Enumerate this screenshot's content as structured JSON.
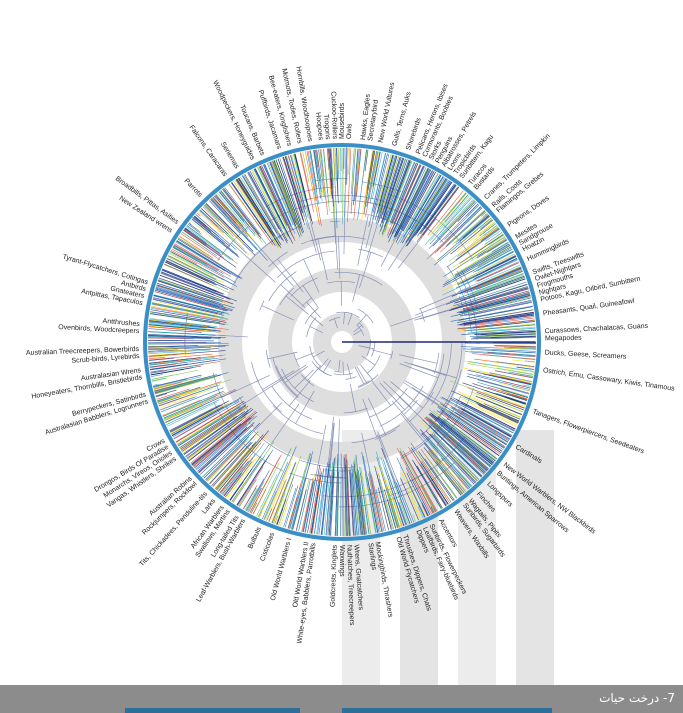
{
  "caption": "7- درخت حیات",
  "colors": {
    "background": "#ffffff",
    "caption_bar": "#8c8c8c",
    "caption_text": "#ffffff",
    "ring": "#3a8fc6",
    "bands": "#e9e9e9",
    "center_rings": "#dcdcdc",
    "branch_dark": "#1a2a7a",
    "branch_mid": "#1b6bbd",
    "branch_teal": "#2bb0c8",
    "branch_green": "#7ac943",
    "branch_yellow": "#f5d90a",
    "branch_red": "#e8452c"
  },
  "clades": [
    {
      "label": "Tyrant-Flycatchers, Cotingas",
      "angle": 197
    },
    {
      "label": "New Zealand wrens",
      "angle": 213
    },
    {
      "label": "Broadbills, Pittas, Asities",
      "angle": 216
    },
    {
      "label": "Parrots",
      "angle": 226
    },
    {
      "label": "Falcons, Caracaras",
      "angle": 235
    },
    {
      "label": "Seriemas",
      "angle": 239
    },
    {
      "label": "Woodpeckers, Honeyguides",
      "angle": 244
    },
    {
      "label": "Toucans, Barbets",
      "angle": 247
    },
    {
      "label": "Puffbirds, Jacamars",
      "angle": 252
    },
    {
      "label": "Bee-eaters, Kingfishers",
      "angle": 255
    },
    {
      "label": "Motmots, Todies, Rollers",
      "angle": 258
    },
    {
      "label": "Hornbills, Woodhoopoes",
      "angle": 261
    },
    {
      "label": "Hoopoes",
      "angle": 264
    },
    {
      "label": "Trogons",
      "angle": 266
    },
    {
      "label": "Cuckoo-Rollers",
      "angle": 268
    },
    {
      "label": "Mousebirds",
      "angle": 270
    },
    {
      "label": "Owls",
      "angle": 272
    },
    {
      "label": "Hawks, Eagles",
      "angle": 276
    },
    {
      "label": "Secretarybird",
      "angle": 278
    },
    {
      "label": "New World Vultures",
      "angle": 281
    },
    {
      "label": "Gulls, Terns, Auks",
      "angle": 285
    },
    {
      "label": "Shorebirds",
      "angle": 289
    },
    {
      "label": "Pelicans, Herons, Ibises",
      "angle": 292
    },
    {
      "label": "Cormorants, Boobies",
      "angle": 294
    },
    {
      "label": "Storks",
      "angle": 296
    },
    {
      "label": "Penguins",
      "angle": 298
    },
    {
      "label": "Albatrosses, Petrels",
      "angle": 300
    },
    {
      "label": "Loons",
      "angle": 302
    },
    {
      "label": "Tropicbirds",
      "angle": 304
    },
    {
      "label": "Sunbittern, Kagu",
      "angle": 306
    },
    {
      "label": "Turacos",
      "angle": 309
    },
    {
      "label": "Bustards",
      "angle": 311
    },
    {
      "label": "Cranes, Trumpeters, Limpkin",
      "angle": 315
    },
    {
      "label": "Rails, Coots",
      "angle": 318
    },
    {
      "label": "Flamingos, Grebes",
      "angle": 320
    },
    {
      "label": "Pigeons, Doves",
      "angle": 325
    },
    {
      "label": "Mesites",
      "angle": 329
    },
    {
      "label": "Sandgrouse",
      "angle": 331
    },
    {
      "label": "Hoatzin",
      "angle": 333
    },
    {
      "label": "Hummingbirds",
      "angle": 336
    },
    {
      "label": "Swifts, Treeswifts",
      "angle": 340
    },
    {
      "label": "Owlet-Nightjars",
      "angle": 342
    },
    {
      "label": "Frogmouths",
      "angle": 344
    },
    {
      "label": "Nightjars",
      "angle": 346
    },
    {
      "label": "Potoos, Kagu, Oilbird, Sunbittern",
      "angle": 348
    },
    {
      "label": "Pheasants, Quail, Guineafowl",
      "angle": 352
    },
    {
      "label": "Curassows, Chachalacas, Guans",
      "angle": 357
    },
    {
      "label": "Megapodes",
      "angle": 359
    },
    {
      "label": "Ducks, Geese, Screamers",
      "angle": 3
    },
    {
      "label": "Ostrich, Emu, Cassowary, Kiwis, Tinamous",
      "angle": 8
    },
    {
      "label": "Tanagers, Flowerpiercers, Seedeaters",
      "angle": 20
    },
    {
      "label": "Cardinals",
      "angle": 31
    },
    {
      "label": "New World Warblers, NW Blackbirds",
      "angle": 37
    },
    {
      "label": "Buntings, American Sparrows",
      "angle": 40
    },
    {
      "label": "Longspurs",
      "angle": 44
    },
    {
      "label": "Finches",
      "angle": 48
    },
    {
      "label": "Wagtails, Pipits",
      "angle": 51
    },
    {
      "label": "Sunbirds, Sugarbirds",
      "angle": 53
    },
    {
      "label": "Weavers, Waxbills",
      "angle": 56
    },
    {
      "label": "Accentors",
      "angle": 61
    },
    {
      "label": "Sunbirds, Flowerpeckers",
      "angle": 64
    },
    {
      "label": "Leafbirds, Fairy-bluebirds",
      "angle": 66
    },
    {
      "label": "Dippers",
      "angle": 68
    },
    {
      "label": "Thrushes, Dippers, Chats",
      "angle": 72
    },
    {
      "label": "Old World Flycatchers",
      "angle": 74
    },
    {
      "label": "Mockingbirds, Thrashers",
      "angle": 80
    },
    {
      "label": "Starlings",
      "angle": 82
    },
    {
      "label": "Wrens, Gnatcatchers",
      "angle": 86
    },
    {
      "label": "Nuthatches, Treecreepers",
      "angle": 88
    },
    {
      "label": "Waxwings",
      "angle": 90
    },
    {
      "label": "Goldcrests, Kinglets",
      "angle": 92
    },
    {
      "label": "White-eyes, Babblers, Parrotbills",
      "angle": 98
    },
    {
      "label": "Old World Warblers II",
      "angle": 100
    },
    {
      "label": "Old World Warblers I",
      "angle": 105
    },
    {
      "label": "Cisticolas",
      "angle": 110
    },
    {
      "label": "Bulbuls",
      "angle": 114
    },
    {
      "label": "Leaf-Warblers, Bush-Warblers",
      "angle": 119
    },
    {
      "label": "Long-tailed Tits",
      "angle": 121
    },
    {
      "label": "Swallows, Martins",
      "angle": 124
    },
    {
      "label": "African Warblers",
      "angle": 126
    },
    {
      "label": "Larks",
      "angle": 129
    },
    {
      "label": "Tits, Chickadees, Penduline-tits",
      "angle": 132
    },
    {
      "label": "Rockjumpers, Rockfowl",
      "angle": 136
    },
    {
      "label": "Australian Robins",
      "angle": 138
    },
    {
      "label": "Vangas, Whistlers, Shrikes",
      "angle": 145
    },
    {
      "label": "Monarchs, Vireos, Orioles",
      "angle": 147
    },
    {
      "label": "Drongos, Birds Of Paradise",
      "angle": 149
    },
    {
      "label": "Crows",
      "angle": 151
    },
    {
      "label": "Australasian Babblers, Logrunners",
      "angle": 163
    },
    {
      "label": "Berrypeckers, Satinbirds",
      "angle": 165
    },
    {
      "label": "Honeyeaters, Thornbills, Bristlebirds",
      "angle": 170
    },
    {
      "label": "Australasian Wrens",
      "angle": 172
    },
    {
      "label": "Scrub-birds, Lyrebirds",
      "angle": 176
    },
    {
      "label": "Australian Treecreepers, Bowerbirds",
      "angle": 178
    },
    {
      "label": "Ovenbirds, Woodcreepers",
      "angle": 183
    },
    {
      "label": "Antthrushes",
      "angle": 185
    },
    {
      "label": "Antpittas, Tapaculos",
      "angle": 191
    },
    {
      "label": "Gnateaters",
      "angle": 193
    },
    {
      "label": "Antbirds",
      "angle": 195
    }
  ]
}
